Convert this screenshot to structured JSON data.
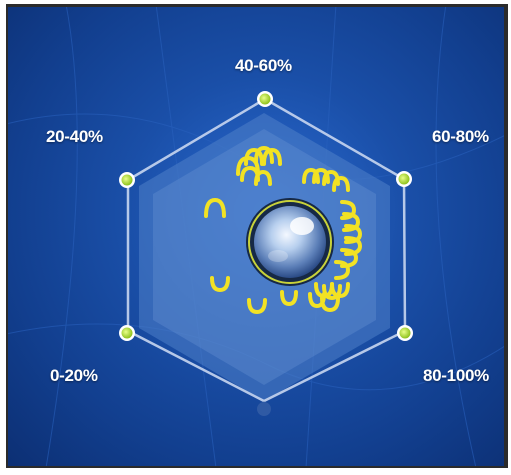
{
  "hexagon_chart": {
    "segments": [
      {
        "label": "0-20%"
      },
      {
        "label": "20-40%"
      },
      {
        "label": "40-60%"
      },
      {
        "label": "60-80%"
      },
      {
        "label": "80-100%"
      }
    ]
  },
  "colors": {
    "background": "#1a4fa8",
    "outline": "#c8d6f0",
    "node_fill": "#b8e04a",
    "coil": "#f2e224",
    "core": "#9fc0e6"
  },
  "icons": {
    "center": "glass-sphere-icon",
    "coils": "yellow-coil-icon"
  }
}
